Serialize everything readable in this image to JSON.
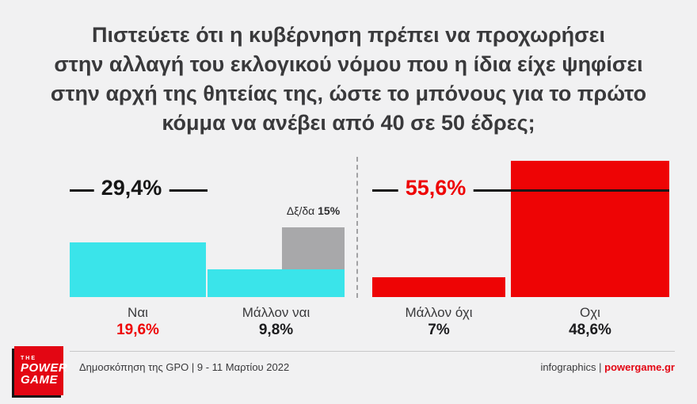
{
  "title": {
    "lines": [
      "Πιστεύετε ότι η κυβέρνηση πρέπει να προχωρήσει",
      "στην αλλαγή του εκλογικού νόμου που η ίδια είχε ψηφίσει",
      "στην αρχή της θητείας της, ώστε το μπόνους για το πρώτο",
      "κόμμα να ανέβει από 40 σε 50 έδρες;"
    ]
  },
  "chart_data": {
    "type": "bar",
    "title": "Πιστεύετε ότι η κυβέρνηση πρέπει να προχωρήσει στην αλλαγή του εκλογικού νόμου που η ίδια είχε ψηφίσει στην αρχή της θητείας της, ώστε το μπόνους για το πρώτο κόμμα να ανέβει από 40 σε 50 έδρες;",
    "categories": [
      "Ναι",
      "Μάλλον ναι",
      "Δξ/δα",
      "Μάλλον όχι",
      "Οχι"
    ],
    "values": [
      19.6,
      9.8,
      15,
      7,
      48.6
    ],
    "value_labels": [
      "19,6%",
      "9,8%",
      "15%",
      "7%",
      "48,6%"
    ],
    "colors": [
      "#3ae4ea",
      "#3ae4ea",
      "#a8a8aa",
      "#ee0405",
      "#ee0405"
    ],
    "group_totals": [
      {
        "label": "29,4%",
        "group": "yes",
        "value": 29.4
      },
      {
        "label": "55,6%",
        "group": "no",
        "value": 55.6
      }
    ],
    "ylim": [
      0,
      50
    ],
    "legend": "none",
    "grid": false,
    "notes": "Δξ/δα bar is stacked above the 'Μάλλον ναι' bar; dashed divider separates yes-side from no-side"
  },
  "annotations": {
    "yes_total": "29,4%",
    "no_total": "55,6%",
    "dk_label": "Δξ/δα",
    "dk_value": "15%"
  },
  "footer": {
    "source": "Δημοσκόπηση της GPO | 9 - 11 Μαρτίου 2022",
    "credit_prefix": "infographics | ",
    "credit_site": "powergame.gr"
  },
  "logo": {
    "the": "THE",
    "power": "POWER",
    "game": "GAME"
  }
}
